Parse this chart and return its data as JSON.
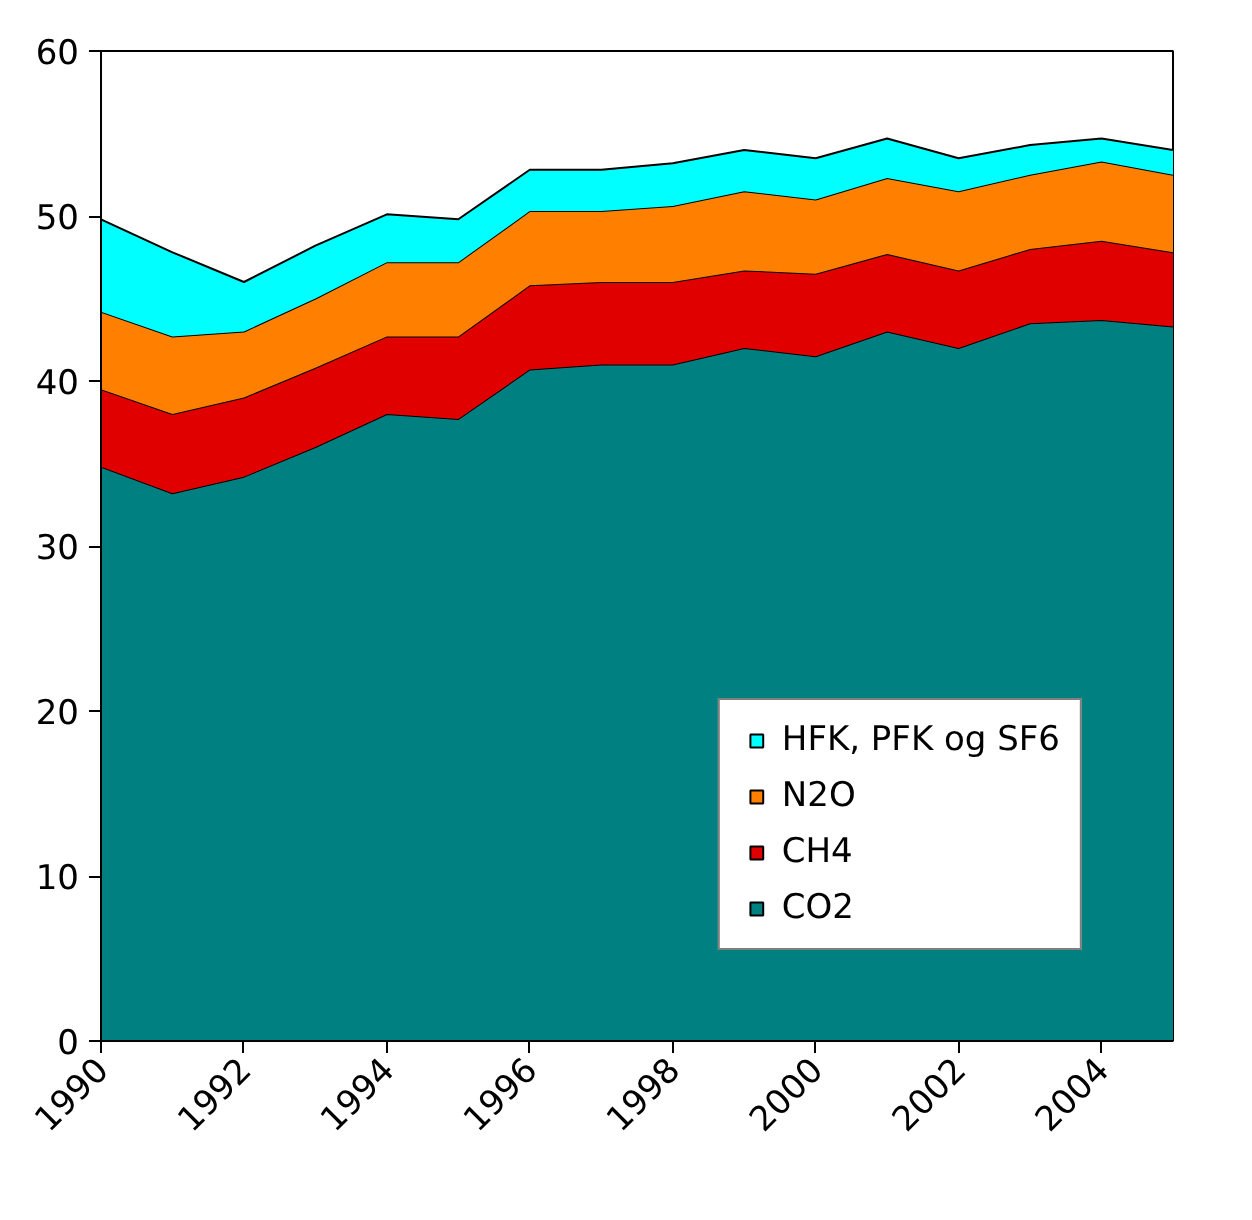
{
  "chart_data": {
    "type": "area",
    "stacked": true,
    "x": [
      1990,
      1991,
      1992,
      1993,
      1994,
      1995,
      1996,
      1997,
      1998,
      1999,
      2000,
      2001,
      2002,
      2003,
      2004,
      2005
    ],
    "series": [
      {
        "name": "CO2",
        "color": "#008080",
        "values": [
          34.8,
          33.2,
          34.2,
          36,
          38,
          37.7,
          40.7,
          41,
          41,
          42,
          41.5,
          43,
          42,
          43.5,
          43.7,
          43.3
        ]
      },
      {
        "name": "CH4",
        "color": "#e00000",
        "values": [
          4.7,
          4.8,
          4.8,
          4.8,
          4.7,
          5.0,
          5.1,
          5.0,
          5.0,
          4.7,
          5.0,
          4.7,
          4.7,
          4.5,
          4.8,
          4.5
        ]
      },
      {
        "name": "N2O",
        "color": "#ff8000",
        "values": [
          4.7,
          4.7,
          4.0,
          4.2,
          4.5,
          4.5,
          4.5,
          4.3,
          4.6,
          4.8,
          4.5,
          4.6,
          4.8,
          4.5,
          4.8,
          4.7
        ]
      },
      {
        "name": "HFK, PFK og SF6",
        "color": "#00ffff",
        "values": [
          5.6,
          5.1,
          3.0,
          3.2,
          2.9,
          2.6,
          2.5,
          2.5,
          2.6,
          2.5,
          2.5,
          2.4,
          2.0,
          1.8,
          1.4,
          1.5
        ]
      }
    ],
    "xlim": [
      1990,
      2005
    ],
    "xticks": [
      1990,
      1992,
      1994,
      1996,
      1998,
      2000,
      2002,
      2004
    ],
    "ylim": [
      0,
      60
    ],
    "yticks": [
      0,
      10,
      20,
      30,
      40,
      50,
      60
    ],
    "grid": false,
    "legend": "bottom right"
  }
}
